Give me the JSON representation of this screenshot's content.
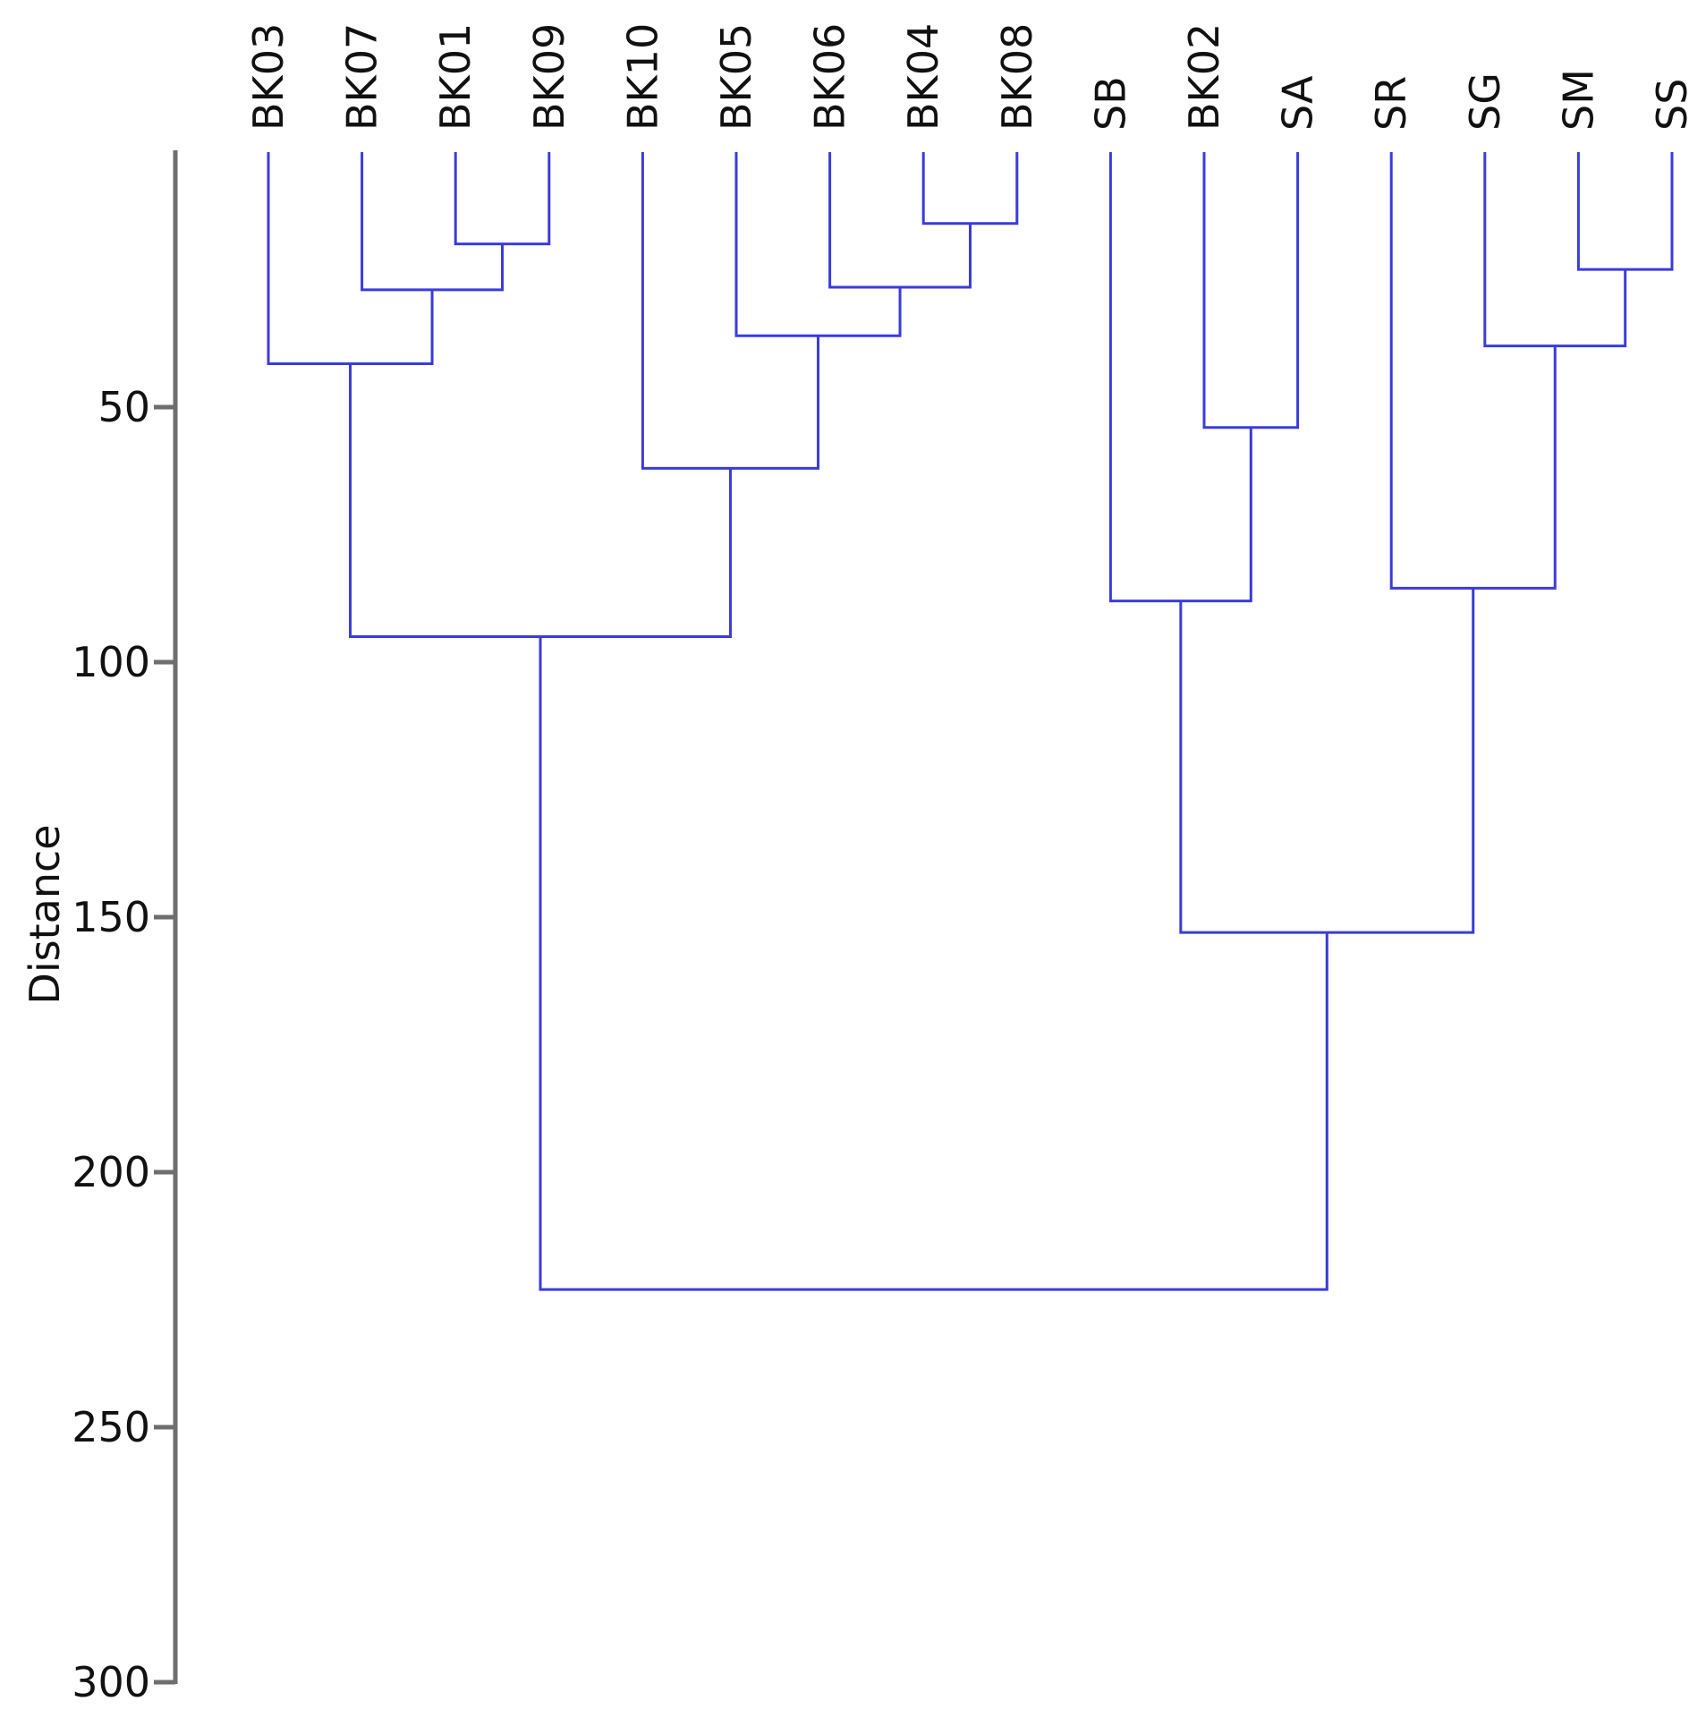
{
  "chart_data": {
    "type": "dendrogram",
    "ylabel": "Distance",
    "ylim": [
      0,
      300
    ],
    "y_inverted": true,
    "y_ticks": [
      50,
      100,
      150,
      200,
      250,
      300
    ],
    "line_color": "#3b3bdb",
    "leaves": [
      "BK03",
      "BK07",
      "BK01",
      "BK09",
      "BK10",
      "BK05",
      "BK06",
      "BK04",
      "BK08",
      "SB",
      "BK02",
      "SA",
      "SR",
      "SG",
      "SM",
      "SS"
    ],
    "merges": [
      {
        "id": "m1",
        "left": "BK04",
        "right": "BK08",
        "height": 14
      },
      {
        "id": "m2",
        "left": "BK01",
        "right": "BK09",
        "height": 18
      },
      {
        "id": "m3",
        "left": "SM",
        "right": "SS",
        "height": 23
      },
      {
        "id": "m4",
        "left": "BK06",
        "right": "m1",
        "height": 26.5
      },
      {
        "id": "m5",
        "left": "BK07",
        "right": "m2",
        "height": 27
      },
      {
        "id": "m6",
        "left": "BK05",
        "right": "m4",
        "height": 36
      },
      {
        "id": "m7",
        "left": "SG",
        "right": "m3",
        "height": 38
      },
      {
        "id": "m8",
        "left": "BK03",
        "right": "m5",
        "height": 41.5
      },
      {
        "id": "m9",
        "left": "BK02",
        "right": "SA",
        "height": 54
      },
      {
        "id": "m10",
        "left": "BK10",
        "right": "m6",
        "height": 62
      },
      {
        "id": "m11",
        "left": "SR",
        "right": "m7",
        "height": 85.5
      },
      {
        "id": "m12",
        "left": "SB",
        "right": "m9",
        "height": 88
      },
      {
        "id": "m13",
        "left": "m8",
        "right": "m10",
        "height": 95
      },
      {
        "id": "m14",
        "left": "m12",
        "right": "m11",
        "height": 153
      },
      {
        "id": "m15",
        "left": "m13",
        "right": "m14",
        "height": 223
      }
    ]
  }
}
